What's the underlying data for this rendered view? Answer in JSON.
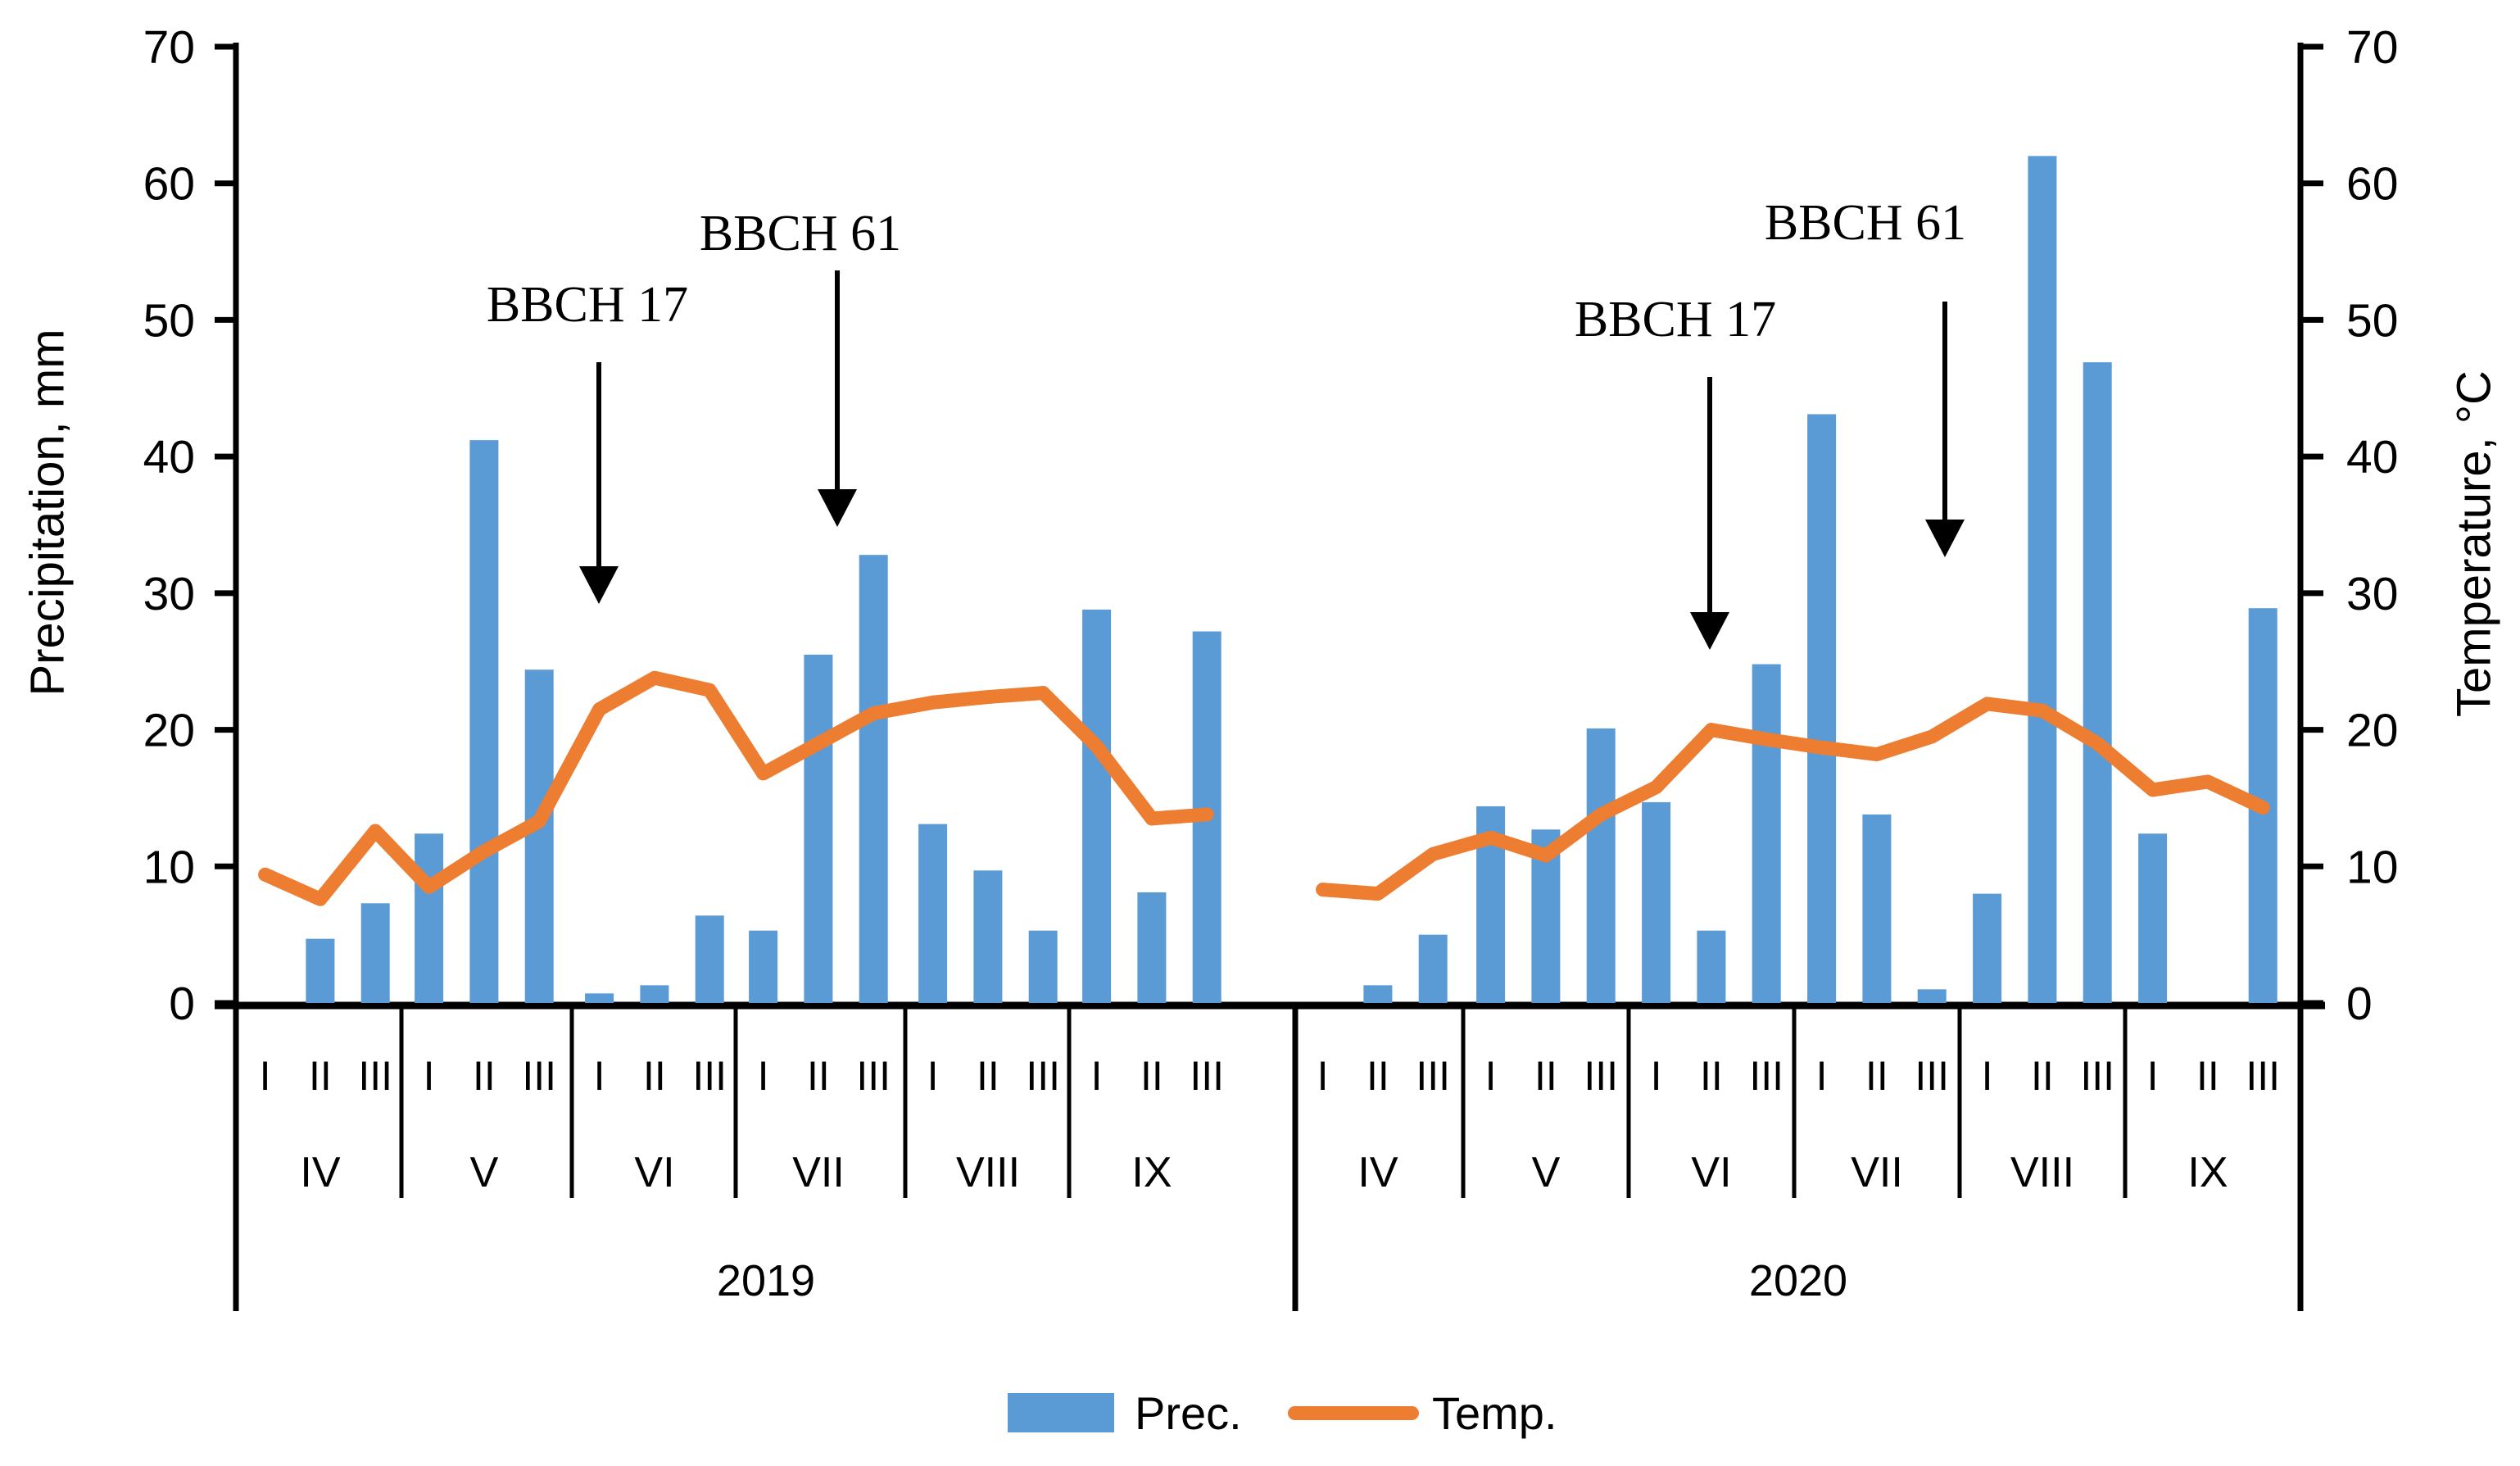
{
  "chart_data": {
    "type": "bar+line",
    "title": "",
    "ylabel_left": "Precipitation, mm",
    "ylabel_right": "Temperature, °C",
    "ylim": [
      0,
      70
    ],
    "yticks": [
      0,
      10,
      20,
      30,
      40,
      50,
      60,
      70
    ],
    "grid": "off",
    "legend_position": "bottom-center",
    "decade_labels": [
      "I",
      "II",
      "III"
    ],
    "series": [
      {
        "name": "Prec.",
        "type": "bar",
        "color": "#5B9BD5"
      },
      {
        "name": "Temp.",
        "type": "line",
        "color": "#ED7D31"
      }
    ],
    "years": [
      {
        "label": "2019",
        "months": [
          {
            "label": "IV",
            "prec": [
              0,
              4.7,
              7.3
            ],
            "temp": [
              9.4,
              7.6,
              12.6
            ]
          },
          {
            "label": "V",
            "prec": [
              12.4,
              41.2,
              24.4
            ],
            "temp": [
              8.5,
              11.1,
              13.3
            ]
          },
          {
            "label": "VI",
            "prec": [
              0.7,
              1.3,
              6.4
            ],
            "temp": [
              21.5,
              23.8,
              22.9
            ]
          },
          {
            "label": "VII",
            "prec": [
              5.3,
              25.5,
              32.8
            ],
            "temp": [
              16.8,
              19.0,
              21.2
            ]
          },
          {
            "label": "VIII",
            "prec": [
              13.1,
              9.7,
              5.3
            ],
            "temp": [
              22.0,
              22.4,
              22.7
            ]
          },
          {
            "label": "IX",
            "prec": [
              28.8,
              8.1,
              27.2
            ],
            "temp": [
              18.8,
              13.5,
              13.8
            ]
          }
        ]
      },
      {
        "label": "2020",
        "months": [
          {
            "label": "IV",
            "prec": [
              0,
              1.3,
              5.0
            ],
            "temp": [
              8.3,
              8.0,
              10.9
            ]
          },
          {
            "label": "V",
            "prec": [
              14.4,
              12.7,
              20.1
            ],
            "temp": [
              12.1,
              10.8,
              13.8
            ]
          },
          {
            "label": "VI",
            "prec": [
              14.7,
              5.3,
              24.8
            ],
            "temp": [
              15.8,
              20.0,
              19.3
            ]
          },
          {
            "label": "VII",
            "prec": [
              43.1,
              13.8,
              1.0
            ],
            "temp": [
              18.7,
              18.2,
              19.5
            ]
          },
          {
            "label": "VIII",
            "prec": [
              8.0,
              62.0,
              46.9
            ],
            "temp": [
              21.9,
              21.4,
              19.0
            ]
          },
          {
            "label": "IX",
            "prec": [
              12.4,
              0,
              28.9
            ],
            "temp": [
              15.6,
              16.2,
              14.3
            ]
          }
        ]
      }
    ],
    "annotations": [
      {
        "label": "BBCH 17",
        "year": "2019",
        "lx": 717,
        "ly": 372,
        "ax": 731,
        "ay1": 442,
        "ay2": 737
      },
      {
        "label": "BBCH 61",
        "year": "2019",
        "lx": 977,
        "ly": 285,
        "ax": 1022,
        "ay1": 330,
        "ay2": 643
      },
      {
        "label": "BBCH 17",
        "year": "2020",
        "lx": 2045,
        "ly": 390,
        "ax": 2087,
        "ay1": 460,
        "ay2": 793
      },
      {
        "label": "BBCH 61",
        "year": "2020",
        "lx": 2277,
        "ly": 272,
        "ax": 2374,
        "ay1": 368,
        "ay2": 680
      }
    ],
    "legend": {
      "prec_label": "Prec.",
      "temp_label": "Temp."
    }
  },
  "colors": {
    "bar": "#5B9BD5",
    "line": "#ED7D31",
    "axis": "#000000"
  }
}
